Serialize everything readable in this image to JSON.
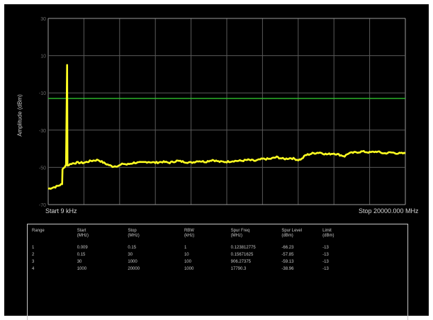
{
  "chart_data": {
    "type": "line",
    "xlabel_start": "Start 9 kHz",
    "xlabel_stop": "Stop 20000.000 MHz",
    "ylabel": "Amplitude (dBm)",
    "y_ticks": [
      "30",
      "10",
      "-10",
      "-30",
      "-50",
      "-70"
    ],
    "ylim": [
      -70,
      30
    ],
    "grid": true,
    "limit_line": {
      "value": -13,
      "color": "#2fbf2f"
    },
    "trace_color": "#ffff22",
    "series": [
      {
        "x": [
          0.0,
          2.0,
          3.9,
          4.0,
          4.3,
          5.0,
          5.3,
          5.4,
          6.5,
          8.0,
          10.0,
          12.0,
          14.0,
          16.0,
          18.0,
          20.0,
          21.0,
          22.0,
          23.0,
          24.0,
          26.0,
          28.0,
          30.0,
          32.0,
          34.0,
          36.0,
          38.0,
          40.0,
          42.0,
          44.0,
          46.0,
          48.0,
          50.0,
          52.0,
          54.0,
          56.0,
          58.0,
          60.0,
          62.0,
          64.0,
          66.0,
          68.0,
          70.0,
          71.0,
          72.0,
          73.0,
          74.0,
          76.0,
          78.0,
          80.0,
          82.0,
          83.0,
          84.0,
          86.0,
          88.0,
          90.0,
          92.0,
          94.0,
          96.0,
          98.0,
          100.0
        ],
        "y": [
          -61.5,
          -60.5,
          -59.0,
          -51.0,
          -50.5,
          -48.5,
          5.0,
          -49.0,
          -48.0,
          -47.5,
          -47.5,
          -46.5,
          -46.0,
          -48.0,
          -49.5,
          -49.0,
          -48.0,
          -48.5,
          -48.0,
          -47.5,
          -47.5,
          -47.0,
          -47.5,
          -47.0,
          -47.5,
          -46.5,
          -47.0,
          -47.5,
          -46.5,
          -47.0,
          -46.0,
          -47.0,
          -47.0,
          -46.5,
          -46.5,
          -46.0,
          -46.5,
          -45.5,
          -45.5,
          -44.5,
          -45.5,
          -45.0,
          -46.0,
          -45.5,
          -43.5,
          -43.0,
          -42.5,
          -42.0,
          -43.0,
          -42.5,
          -43.5,
          -44.0,
          -42.5,
          -42.0,
          -41.5,
          -42.0,
          -41.5,
          -42.5,
          -42.0,
          -42.5,
          -42.5
        ]
      }
    ]
  },
  "table": {
    "headers": [
      [
        "Range"
      ],
      [
        "Start",
        "(MHz)"
      ],
      [
        "Stop",
        "(MHz)"
      ],
      [
        "RBW",
        "(kHz)"
      ],
      [
        "Spur Freq",
        "(MHz)"
      ],
      [
        "Spur Level",
        "(dBm)"
      ],
      [
        "Limit",
        "(dBm)"
      ]
    ],
    "rows": [
      [
        "1",
        "0.009",
        "0.15",
        "1",
        "0.123812775",
        "-66.23",
        "-13"
      ],
      [
        "2",
        "0.15",
        "30",
        "10",
        "0.15671625",
        "-57.85",
        "-13"
      ],
      [
        "3",
        "30",
        "1000",
        "100",
        "906.27375",
        "-59.13",
        "-13"
      ],
      [
        "4",
        "1000",
        "20000",
        "1000",
        "17790.3",
        "-38.96",
        "-13"
      ]
    ]
  }
}
